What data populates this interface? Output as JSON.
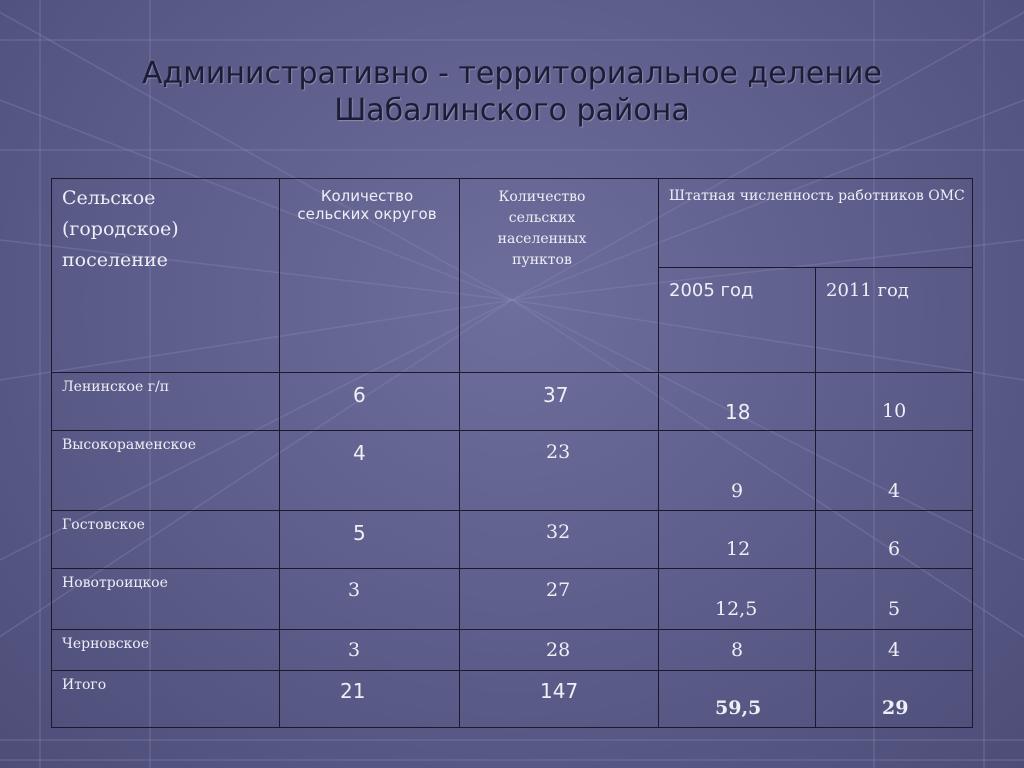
{
  "title": {
    "line1": "Административно - территориальное деление",
    "line2": "Шабалинского района"
  },
  "table": {
    "headers": {
      "settlement": "Сельское (городское) поселение",
      "rural_districts": "Количество сельских округов",
      "settlements_count": "Количество сельских населенных пунктов",
      "staff": "Штатная численность работников ОМС",
      "year_2005": "2005 год",
      "year_2011": "2011 год"
    },
    "rows": [
      {
        "name": "Ленинское г/п",
        "districts": "6",
        "points": "37",
        "y2005": "18",
        "y2011": "10"
      },
      {
        "name": "Высокораменское",
        "districts": "4",
        "points": "23",
        "y2005": "9",
        "y2011": "4"
      },
      {
        "name": "Гостовское",
        "districts": "5",
        "points": "32",
        "y2005": "12",
        "y2011": "6"
      },
      {
        "name": "Новотроицкое",
        "districts": "3",
        "points": "27",
        "y2005": "12,5",
        "y2011": "5"
      },
      {
        "name": "Черновское",
        "districts": "3",
        "points": "28",
        "y2005": "8",
        "y2011": "4"
      },
      {
        "name": "Итого",
        "districts": "21",
        "points": "147",
        "y2005": "59,5",
        "y2011": "29"
      }
    ]
  }
}
